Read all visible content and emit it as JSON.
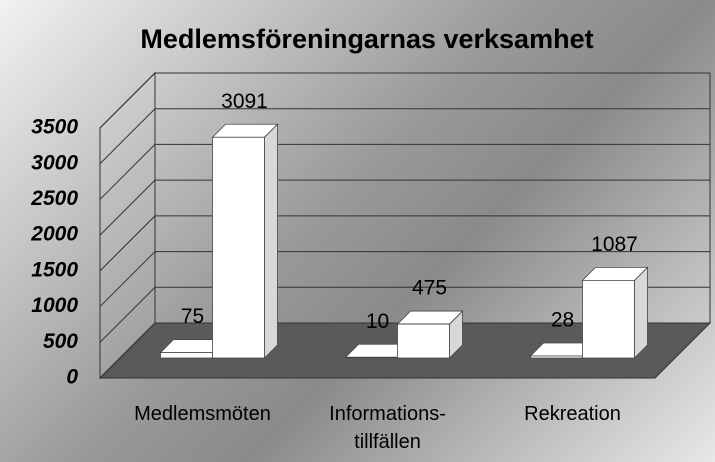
{
  "chart_data": {
    "type": "bar3d",
    "title": "Medlemsföreningarnas verksamhet",
    "categories": [
      "Medlemsmöten",
      "Informations-\ntillfällen",
      "Rekreation"
    ],
    "series": [
      {
        "color": "#ffffff",
        "values": [
          75,
          10,
          28
        ]
      },
      {
        "color": "#ffffff",
        "values": [
          3091,
          475,
          1087
        ]
      }
    ],
    "ylim": [
      0,
      3500
    ],
    "yticks": [
      0,
      500,
      1000,
      1500,
      2000,
      2500,
      3000,
      3500
    ],
    "grid": true
  }
}
